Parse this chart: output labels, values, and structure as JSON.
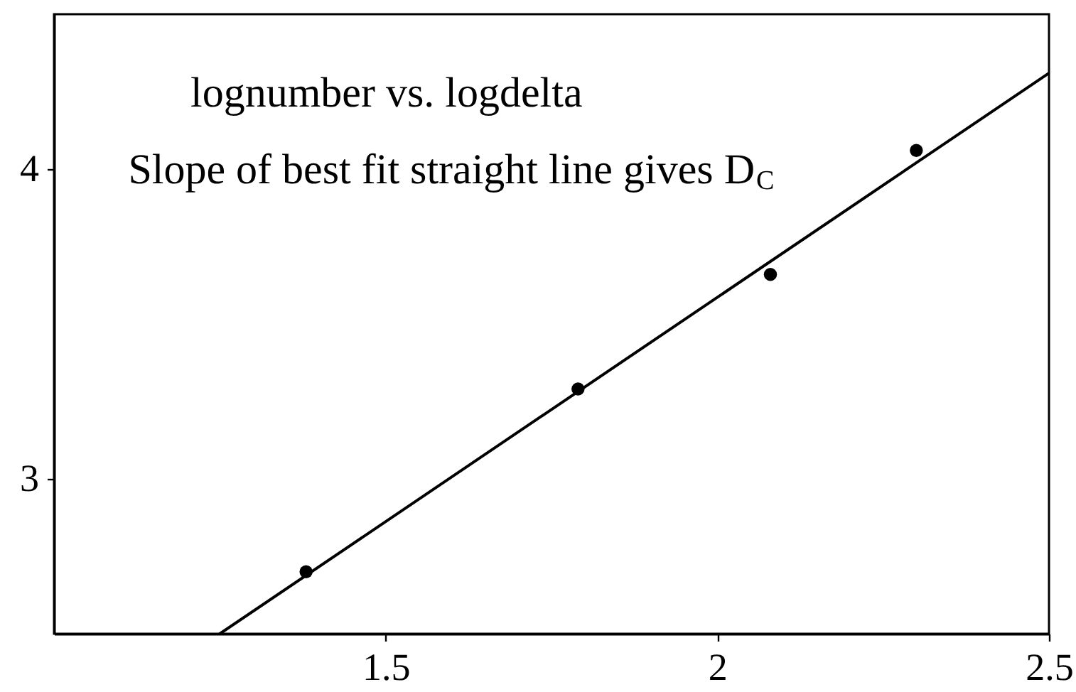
{
  "chart_data": {
    "type": "scatter",
    "annotations": [
      "lognumber vs. logdelta",
      "Slope of best fit straight line gives D$_{C}$"
    ],
    "xlim": [
      1,
      2.5
    ],
    "ylim": [
      2.5,
      4.5
    ],
    "xticks": [
      1.5,
      2,
      2.5
    ],
    "yticks": [
      3,
      4
    ],
    "grid": false,
    "series": [
      {
        "color": "#000000",
        "marker": "circle",
        "x": [
          1.38,
          1.79,
          2.08,
          2.3
        ],
        "values": [
          2.7,
          3.29,
          3.66,
          4.06
        ]
      },
      {
        "type": "line",
        "color": "#000000",
        "line_style": "solid",
        "x": [
          1.25,
          2.5
        ],
        "values": [
          2.5,
          4.31
        ]
      }
    ]
  }
}
